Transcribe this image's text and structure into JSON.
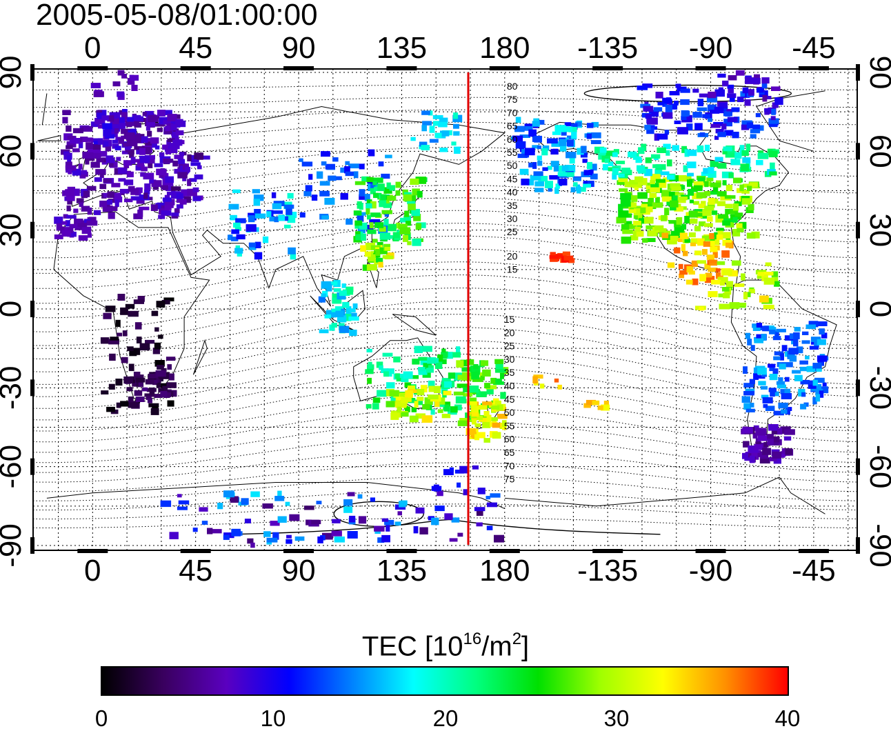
{
  "title": "2005-05-08/01:00:00",
  "colorbar": {
    "label_prefix": "TEC  [10",
    "label_sup1": "16",
    "label_mid": "/m",
    "label_sup2": "2",
    "label_suffix": "]",
    "ticks": [
      "0",
      "10",
      "20",
      "30",
      "40"
    ],
    "range": [
      0,
      40
    ],
    "colors": [
      "#000000",
      "#3a0060",
      "#5a00c0",
      "#0000ff",
      "#0080ff",
      "#00ffff",
      "#00ff80",
      "#00e000",
      "#a0ff00",
      "#ffff00",
      "#ff9000",
      "#ff0000"
    ]
  },
  "map_axes": {
    "longitude_ticks": [
      "0",
      "45",
      "90",
      "135",
      "180",
      "-135",
      "-90",
      "-45"
    ],
    "latitude_ticks": [
      "90",
      "60",
      "30",
      "0",
      "-30",
      "-60",
      "-90"
    ],
    "terminator_longitude": 167
  },
  "contour_labels": {
    "north": [
      "80",
      "75",
      "70",
      "65",
      "60",
      "55",
      "50",
      "45",
      "40",
      "35",
      "30",
      "25",
      "20",
      "15"
    ],
    "south": [
      "15",
      "20",
      "25",
      "30",
      "35",
      "40",
      "45",
      "50",
      "55",
      "60",
      "65",
      "70",
      "75"
    ]
  }
}
